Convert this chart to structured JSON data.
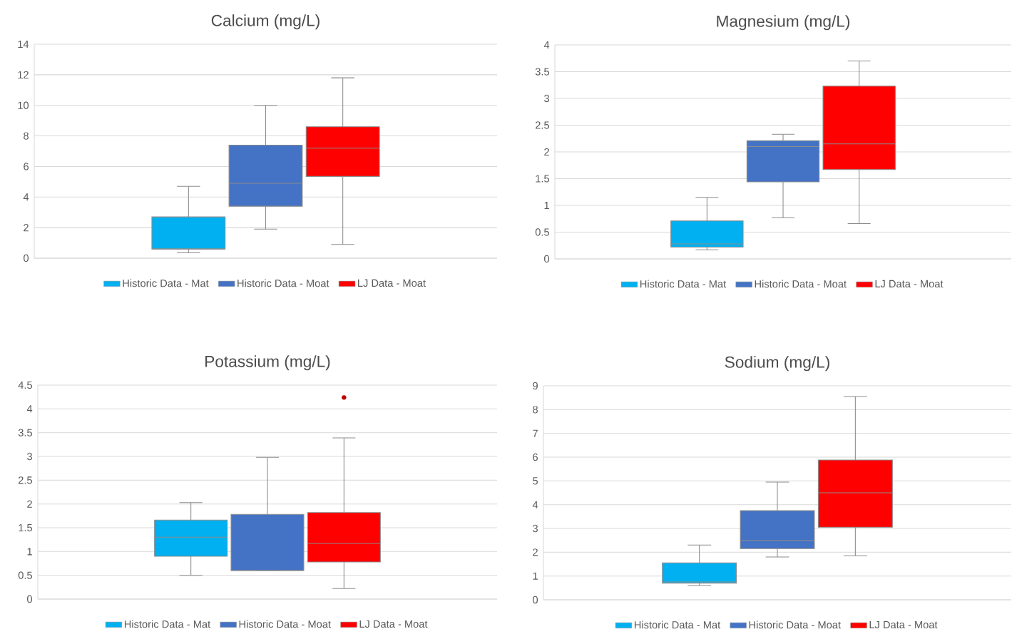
{
  "chart_data": [
    {
      "type": "box",
      "title": "Calcium (mg/L)",
      "categories": [
        null
      ],
      "ylim": [
        0,
        14
      ],
      "yticks": [
        0,
        2,
        4,
        6,
        8,
        10,
        12,
        14
      ],
      "grid": "y",
      "legend": "bottom",
      "series": [
        {
          "name": "Historic Data - Mat",
          "color": "#00b0f0",
          "boxes": [
            {
              "low": 0.35,
              "q1": 0.6,
              "median": 0.6,
              "q3": 2.7,
              "high": 4.7
            }
          ]
        },
        {
          "name": "Historic Data - Moat",
          "color": "#4472c4",
          "boxes": [
            {
              "low": 1.9,
              "q1": 3.4,
              "median": 4.9,
              "q3": 7.4,
              "high": 10
            }
          ]
        },
        {
          "name": "LJ Data - Moat",
          "color": "#ff0000",
          "boxes": [
            {
              "low": 0.9,
              "q1": 5.35,
              "median": 7.2,
              "q3": 8.6,
              "high": 11.8
            }
          ]
        }
      ]
    },
    {
      "type": "box",
      "title": "Magnesium (mg/L)",
      "categories": [
        null
      ],
      "ylim": [
        0,
        4
      ],
      "yticks": [
        0,
        0.5,
        1,
        1.5,
        2,
        2.5,
        3,
        3.5,
        4
      ],
      "grid": "y",
      "legend": "bottom",
      "series": [
        {
          "name": "Historic Data - Mat",
          "color": "#00b0f0",
          "boxes": [
            {
              "low": 0.17,
              "q1": 0.22,
              "median": 0.28,
              "q3": 0.71,
              "high": 1.15
            }
          ]
        },
        {
          "name": "Historic Data - Moat",
          "color": "#4472c4",
          "boxes": [
            {
              "low": 0.77,
              "q1": 1.44,
              "median": 2.1,
              "q3": 2.21,
              "high": 2.33
            }
          ]
        },
        {
          "name": "LJ Data - Moat",
          "color": "#ff0000",
          "boxes": [
            {
              "low": 0.66,
              "q1": 1.67,
              "median": 2.15,
              "q3": 3.23,
              "high": 3.7
            }
          ]
        }
      ]
    },
    {
      "type": "box",
      "title": "Potassium (mg/L)",
      "categories": [
        null
      ],
      "ylim": [
        0,
        4.5
      ],
      "yticks": [
        0,
        0.5,
        1,
        1.5,
        2,
        2.5,
        3,
        3.5,
        4,
        4.5
      ],
      "grid": "y",
      "legend": "bottom",
      "series": [
        {
          "name": "Historic Data - Mat",
          "color": "#00b0f0",
          "boxes": [
            {
              "low": 0.5,
              "q1": 0.9,
              "median": 1.3,
              "q3": 1.66,
              "high": 2.03
            }
          ]
        },
        {
          "name": "Historic Data - Moat",
          "color": "#4472c4",
          "boxes": [
            {
              "low": 0.6,
              "q1": 0.6,
              "median": 0.6,
              "q3": 1.78,
              "high": 2.98
            }
          ]
        },
        {
          "name": "LJ Data - Moat",
          "color": "#ff0000",
          "boxes": [
            {
              "low": 0.22,
              "q1": 0.78,
              "median": 1.17,
              "q3": 1.82,
              "high": 3.39,
              "outliers": [
                4.24
              ]
            }
          ]
        }
      ]
    },
    {
      "type": "box",
      "title": "Sodium (mg/L)",
      "categories": [
        null
      ],
      "ylim": [
        0,
        9
      ],
      "yticks": [
        0,
        1,
        2,
        3,
        4,
        5,
        6,
        7,
        8,
        9
      ],
      "grid": "y",
      "legend": "bottom",
      "series": [
        {
          "name": "Historic Data - Mat",
          "color": "#00b0f0",
          "boxes": [
            {
              "low": 0.6,
              "q1": 0.7,
              "median": 0.75,
              "q3": 1.55,
              "high": 2.3
            }
          ]
        },
        {
          "name": "Historic Data - Moat",
          "color": "#4472c4",
          "boxes": [
            {
              "low": 1.8,
              "q1": 2.15,
              "median": 2.5,
              "q3": 3.75,
              "high": 4.95
            }
          ]
        },
        {
          "name": "LJ Data - Moat",
          "color": "#ff0000",
          "boxes": [
            {
              "low": 1.85,
              "q1": 3.05,
              "median": 4.5,
              "q3": 5.88,
              "high": 8.55
            }
          ]
        }
      ]
    }
  ]
}
